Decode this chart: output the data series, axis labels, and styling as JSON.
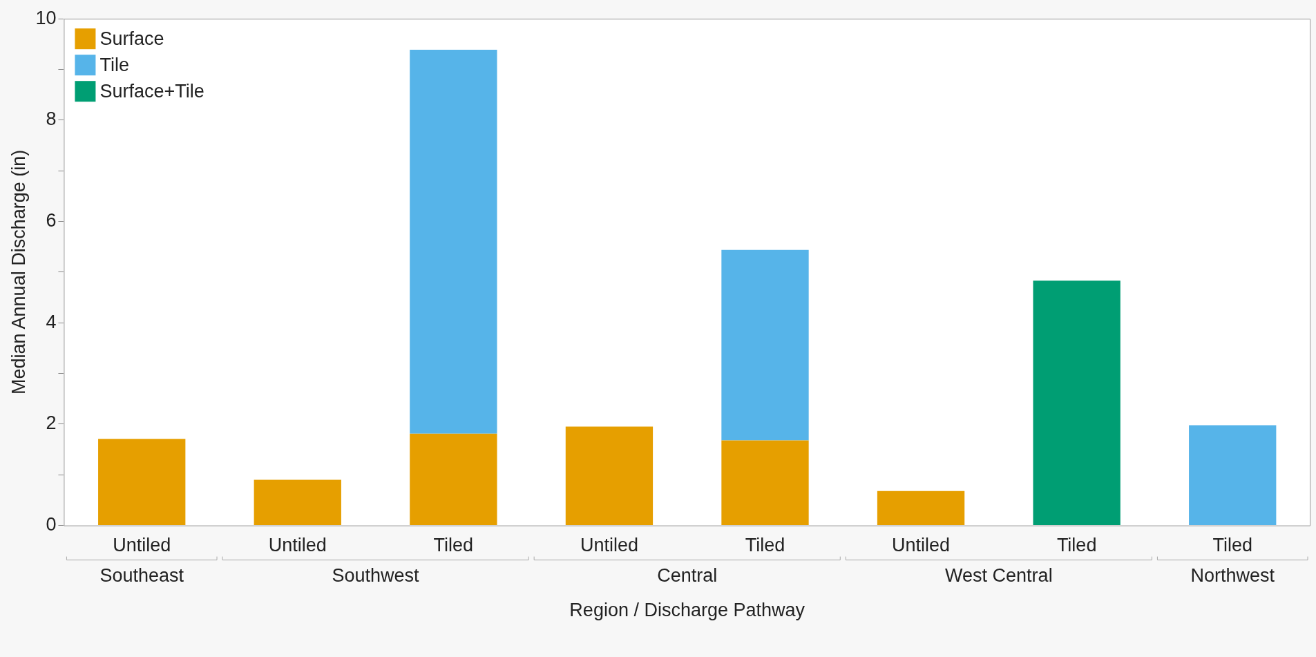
{
  "chart_data": {
    "type": "bar",
    "stacked": true,
    "xlabel": "Region / Discharge Pathway",
    "ylabel": "Median Annual Discharge (in)",
    "categories": [
      "Untiled",
      "Untiled",
      "Tiled",
      "Untiled",
      "Tiled",
      "Untiled",
      "Tiled",
      "Tiled"
    ],
    "series": [
      {
        "name": "Surface",
        "color": "#e69f00",
        "values": [
          1.71,
          0.9,
          1.81,
          1.95,
          1.68,
          0.68,
          null,
          null
        ]
      },
      {
        "name": "Tile",
        "color": "#56b4e9",
        "values": [
          null,
          null,
          7.58,
          null,
          3.76,
          null,
          null,
          1.98
        ]
      },
      {
        "name": "Surface+Tile",
        "color": "#009e73",
        "values": [
          null,
          null,
          null,
          null,
          null,
          null,
          4.83,
          null
        ]
      }
    ],
    "annotations": [
      "Southeast",
      "Southwest",
      "Central",
      "West Central",
      "Northwest"
    ],
    "ylim": [
      0,
      10
    ],
    "yticks": [
      0,
      {
        "value": 1,
        "label": null
      },
      2,
      {
        "value": 3,
        "label": null
      },
      4,
      {
        "value": 5,
        "label": null
      },
      6,
      {
        "value": 7,
        "label": null
      },
      8,
      {
        "value": 9,
        "label": null
      },
      10
    ],
    "legend": "top left"
  }
}
